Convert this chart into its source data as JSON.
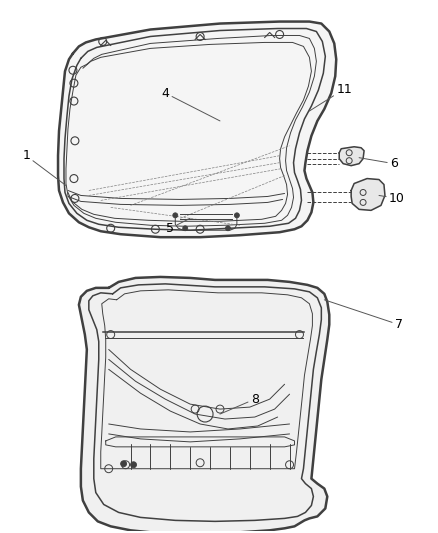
{
  "bg_color": "#ffffff",
  "line_color": "#404040",
  "label_color": "#000000",
  "figsize": [
    4.38,
    5.33
  ],
  "dpi": 100,
  "font_size": 9
}
